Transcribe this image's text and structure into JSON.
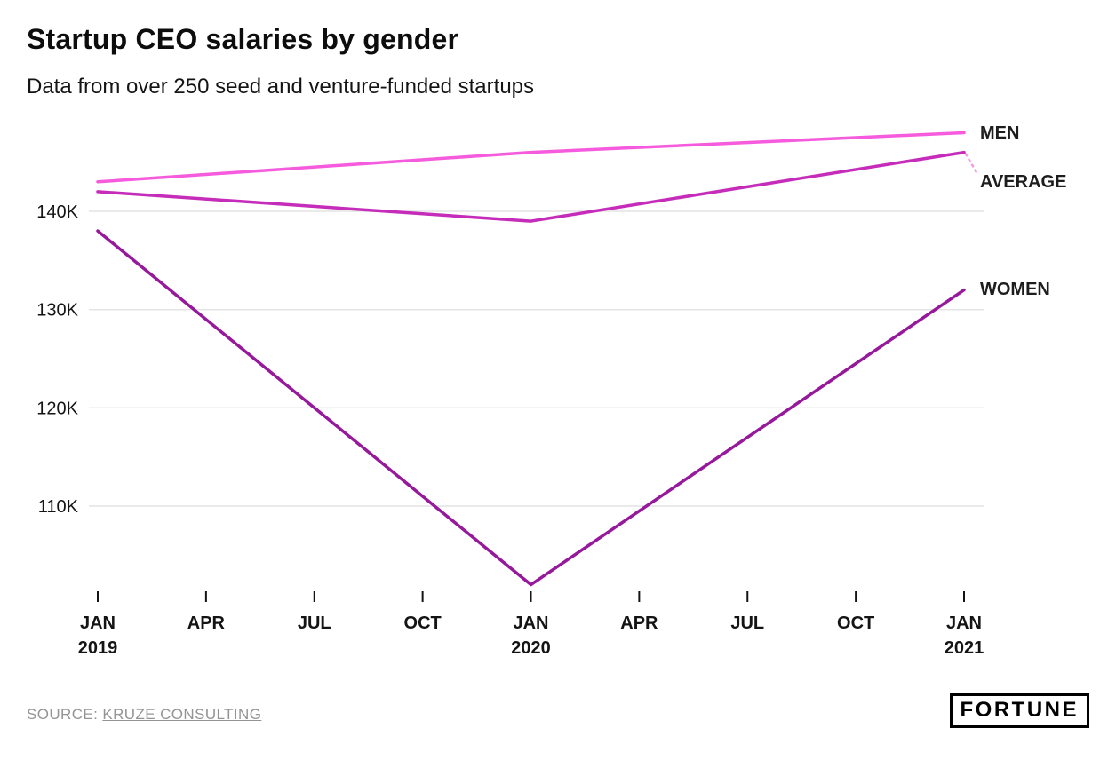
{
  "header": {
    "title": "Startup CEO salaries by gender",
    "subtitle": "Data from over 250 seed and venture-funded startups"
  },
  "chart_data": {
    "type": "line",
    "title": "Startup CEO salaries by gender",
    "subtitle": "Data from over 250 seed and venture-funded startups",
    "y_unit": "USD thousands",
    "ylim": [
      100,
      150
    ],
    "grid": "horizontal",
    "legend_position": "right-edge-labels",
    "x_points": [
      "JAN 2019",
      "JAN 2020",
      "JAN 2021"
    ],
    "x_points_months": [
      0,
      12,
      24
    ],
    "x_tick_labels": [
      [
        "JAN",
        "2019"
      ],
      [
        "APR"
      ],
      [
        "JUL"
      ],
      [
        "OCT"
      ],
      [
        "JAN",
        "2020"
      ],
      [
        "APR"
      ],
      [
        "JUL"
      ],
      [
        "OCT"
      ],
      [
        "JAN",
        "2021"
      ]
    ],
    "y_ticks": [
      {
        "value": 110,
        "label": "110K"
      },
      {
        "value": 120,
        "label": "120K"
      },
      {
        "value": 130,
        "label": "130K"
      },
      {
        "value": 140,
        "label": "140K"
      }
    ],
    "series": [
      {
        "name": "MEN",
        "color": "#f55bdc",
        "values": [
          143,
          146,
          148
        ]
      },
      {
        "name": "AVERAGE",
        "color": "#c52cba",
        "values": [
          142,
          139,
          146
        ]
      },
      {
        "name": "WOMEN",
        "color": "#97199b",
        "values": [
          138,
          102,
          132
        ]
      }
    ]
  },
  "footer": {
    "source_prefix": "SOURCE: ",
    "source_link_text": "KRUZE CONSULTING",
    "brand": "FORTUNE"
  },
  "colors": {
    "gridline": "#e3e3e3",
    "axis_tick": "#141414",
    "connector": "#f59ae6"
  }
}
